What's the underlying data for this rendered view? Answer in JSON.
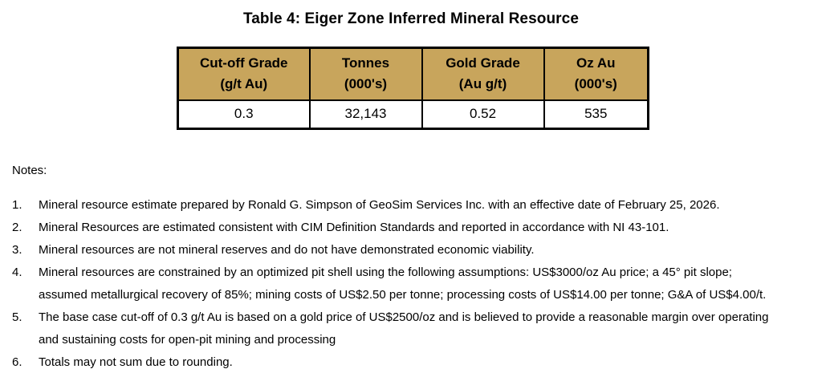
{
  "title": "Table 4: Eiger Zone Inferred Mineral Resource",
  "table": {
    "header_bg": "#C8A55C",
    "border_color": "#000000",
    "columns": [
      [
        "Cut-off Grade",
        "(g/t Au)"
      ],
      [
        "Tonnes",
        "(000's)"
      ],
      [
        "Gold Grade",
        "(Au g/t)"
      ],
      [
        "Oz Au",
        "(000's)"
      ]
    ],
    "rows": [
      [
        "0.3",
        "32,143",
        "0.52",
        "535"
      ]
    ]
  },
  "notes": {
    "label": "Notes:",
    "items": [
      {
        "number": "1.",
        "lines": [
          "Mineral resource estimate prepared by Ronald G. Simpson of GeoSim Services Inc. with an effective date of February 25, 2026."
        ]
      },
      {
        "number": "2.",
        "lines": [
          "Mineral Resources are estimated consistent with CIM Definition Standards and reported in accordance with NI 43-101."
        ]
      },
      {
        "number": "3.",
        "lines": [
          "Mineral resources are not mineral reserves and do not have demonstrated economic viability."
        ]
      },
      {
        "number": "4.",
        "lines": [
          "Mineral resources are constrained by an optimized pit shell using the following assumptions: US$3000/oz Au price; a 45° pit slope;",
          "assumed metallurgical recovery of 85%; mining costs of US$2.50 per tonne; processing costs of US$14.00 per tonne; G&A of US$4.00/t."
        ]
      },
      {
        "number": "5.",
        "lines": [
          "The base case cut-off of 0.3 g/t Au is based on a gold price of US$2500/oz and is believed to provide a reasonable margin over operating",
          "and sustaining costs for open-pit mining and processing"
        ]
      },
      {
        "number": "6.",
        "lines": [
          "Totals may not sum due to rounding."
        ]
      }
    ]
  }
}
